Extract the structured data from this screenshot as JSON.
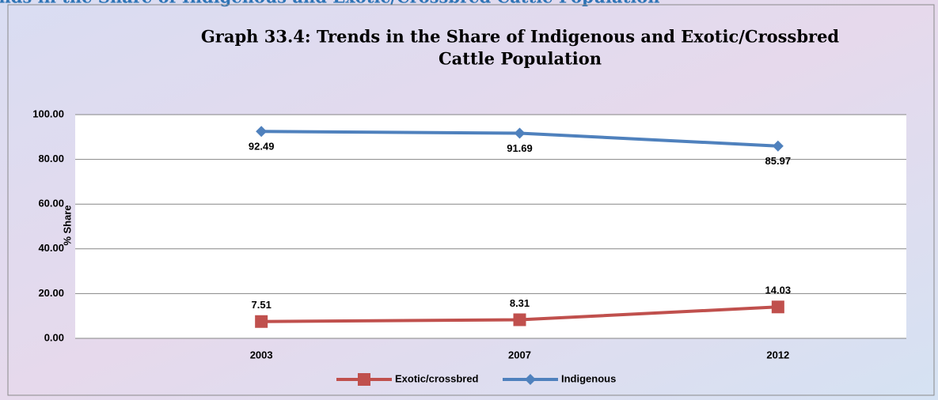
{
  "heading": "Trends in the Share of Indigenous and Exotic/Crossbred Cattle Population",
  "chart_data": {
    "type": "line",
    "title": "Graph  33.4: Trends in the Share of Indigenous and Exotic/Crossbred",
    "subtitle": "Cattle Population",
    "y_label": "% Share",
    "categories": [
      "2003",
      "2007",
      "2012"
    ],
    "series": [
      {
        "name": "Exotic/crossbred",
        "color": "#c0504d",
        "marker": "square",
        "values": [
          7.51,
          8.31,
          14.03
        ],
        "value_labels": [
          "7.51",
          "8.31",
          "14.03"
        ]
      },
      {
        "name": "Indigenous",
        "color": "#4f81bd",
        "marker": "diamond",
        "values": [
          92.49,
          91.69,
          85.97
        ],
        "value_labels": [
          "92.49",
          "91.69",
          "85.97"
        ]
      }
    ],
    "ylim": [
      0,
      100
    ],
    "yticks": [
      {
        "value": 0,
        "label": "0.00"
      },
      {
        "value": 20,
        "label": "20.00"
      },
      {
        "value": 40,
        "label": "40.00"
      },
      {
        "value": 60,
        "label": "60.00"
      },
      {
        "value": 80,
        "label": "80.00"
      },
      {
        "value": 100,
        "label": "100.00"
      }
    ],
    "grid": true,
    "legend": "bottom"
  }
}
